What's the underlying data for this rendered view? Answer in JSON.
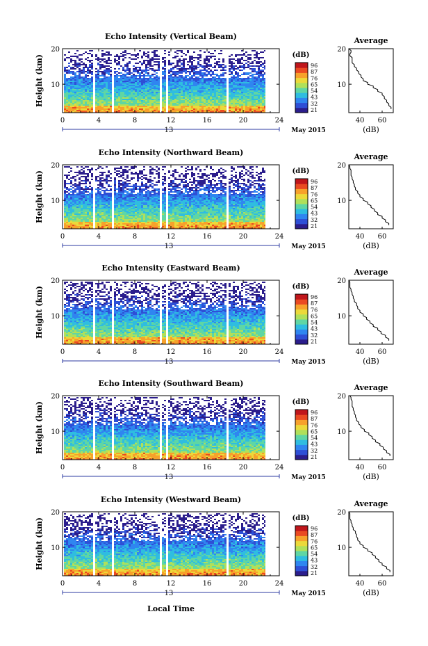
{
  "figure": {
    "shared_xlabel": "Local Time",
    "date_label": "May 2015",
    "day_label": "13",
    "colorbar_title": "(dB)",
    "colorbar_ticks": [
      "96",
      "87",
      "76",
      "65",
      "54",
      "43",
      "32",
      "21"
    ],
    "avg_title": "Average",
    "avg_xlabel": "(dB)",
    "height_label": "Height (km)",
    "colormap": [
      "#2b1d8c",
      "#2e4fd6",
      "#2f86f0",
      "#2fbde0",
      "#5fd6a4",
      "#b0e05a",
      "#ecd93a",
      "#f7a12b",
      "#ea4a22",
      "#c0161b"
    ]
  },
  "chart_data": [
    {
      "type": "heatmap",
      "title": "Echo Intensity (Vertical Beam)",
      "xlabel": "Local Time",
      "ylabel": "Height (km)",
      "xlim": [
        0,
        24
      ],
      "ylim": [
        2,
        20
      ],
      "xticks": [
        0,
        4,
        8,
        12,
        16,
        20,
        24
      ],
      "yticks": [
        10,
        20
      ],
      "gaps_hours": [
        [
          3.3,
          3.6
        ],
        [
          5.3,
          5.5
        ],
        [
          10.7,
          10.8
        ],
        [
          11.3,
          11.5
        ],
        [
          18.0,
          18.2
        ]
      ],
      "colorbar": {
        "label": "(dB)",
        "ticks": [
          96,
          87,
          76,
          65,
          54,
          43,
          32,
          21
        ]
      },
      "average_profile": {
        "title": "Average",
        "xlabel": "(dB)",
        "xticks": [
          40,
          60
        ],
        "xlim": [
          30,
          70
        ],
        "ylim": [
          2,
          20
        ],
        "height_km": [
          3,
          4,
          5,
          6,
          7,
          8,
          9,
          10,
          11,
          12,
          13,
          14,
          15,
          16,
          17,
          18,
          19,
          20
        ],
        "db": [
          68,
          66,
          64,
          62,
          60,
          56,
          52,
          47,
          43,
          41,
          39,
          37,
          35,
          33,
          33,
          31,
          32,
          30
        ]
      }
    },
    {
      "type": "heatmap",
      "title": "Echo Intensity (Northward Beam)",
      "xlabel": "Local Time",
      "ylabel": "Height (km)",
      "xlim": [
        0,
        24
      ],
      "ylim": [
        2,
        20
      ],
      "xticks": [
        0,
        4,
        8,
        12,
        16,
        20,
        24
      ],
      "yticks": [
        10,
        20
      ],
      "gaps_hours": [
        [
          3.3,
          3.6
        ],
        [
          5.3,
          5.5
        ],
        [
          10.7,
          10.8
        ],
        [
          11.3,
          11.5
        ],
        [
          18.0,
          18.2
        ]
      ],
      "colorbar": {
        "label": "(dB)",
        "ticks": [
          96,
          87,
          76,
          65,
          54,
          43,
          32,
          21
        ]
      },
      "average_profile": {
        "title": "Average",
        "xlabel": "(dB)",
        "xticks": [
          40,
          60
        ],
        "xlim": [
          30,
          70
        ],
        "ylim": [
          2,
          20
        ],
        "height_km": [
          3,
          4,
          5,
          6,
          7,
          8,
          9,
          10,
          11,
          12,
          13,
          14,
          15,
          16,
          17,
          18,
          19,
          20
        ],
        "db": [
          66,
          63,
          60,
          56,
          53,
          50,
          47,
          43,
          40,
          38,
          36,
          35,
          34,
          33,
          32,
          32,
          31,
          30
        ]
      }
    },
    {
      "type": "heatmap",
      "title": "Echo Intensity (Eastward Beam)",
      "xlabel": "Local Time",
      "ylabel": "Height (km)",
      "xlim": [
        0,
        24
      ],
      "ylim": [
        2,
        20
      ],
      "xticks": [
        0,
        4,
        8,
        12,
        16,
        20,
        24
      ],
      "yticks": [
        10,
        20
      ],
      "gaps_hours": [
        [
          3.3,
          3.6
        ],
        [
          5.3,
          5.5
        ],
        [
          10.7,
          10.8
        ],
        [
          11.3,
          11.5
        ],
        [
          18.0,
          18.2
        ]
      ],
      "colorbar": {
        "label": "(dB)",
        "ticks": [
          96,
          87,
          76,
          65,
          54,
          43,
          32,
          21
        ]
      },
      "average_profile": {
        "title": "Average",
        "xlabel": "(dB)",
        "xticks": [
          40,
          60
        ],
        "xlim": [
          30,
          70
        ],
        "ylim": [
          2,
          20
        ],
        "height_km": [
          3,
          4,
          5,
          6,
          7,
          8,
          9,
          10,
          11,
          12,
          13,
          14,
          15,
          16,
          17,
          18,
          19,
          20
        ],
        "db": [
          66,
          63,
          59,
          56,
          52,
          49,
          46,
          43,
          40,
          38,
          37,
          35,
          34,
          33,
          32,
          31,
          31,
          30
        ]
      }
    },
    {
      "type": "heatmap",
      "title": "Echo Intensity (Southward Beam)",
      "xlabel": "Local Time",
      "ylabel": "Height (km)",
      "xlim": [
        0,
        24
      ],
      "ylim": [
        2,
        20
      ],
      "xticks": [
        0,
        4,
        8,
        12,
        16,
        20,
        24
      ],
      "yticks": [
        10,
        20
      ],
      "gaps_hours": [
        [
          3.3,
          3.6
        ],
        [
          5.3,
          5.5
        ],
        [
          10.7,
          10.8
        ],
        [
          11.3,
          11.5
        ],
        [
          18.0,
          18.2
        ]
      ],
      "colorbar": {
        "label": "(dB)",
        "ticks": [
          96,
          87,
          76,
          65,
          54,
          43,
          32,
          21
        ]
      },
      "average_profile": {
        "title": "Average",
        "xlabel": "(dB)",
        "xticks": [
          40,
          60
        ],
        "xlim": [
          30,
          70
        ],
        "ylim": [
          2,
          20
        ],
        "height_km": [
          3,
          4,
          5,
          6,
          7,
          8,
          9,
          10,
          11,
          12,
          13,
          14,
          15,
          16,
          17,
          18,
          19,
          20
        ],
        "db": [
          67,
          64,
          61,
          58,
          54,
          51,
          48,
          44,
          41,
          39,
          37,
          36,
          35,
          34,
          33,
          33,
          32,
          31
        ]
      }
    },
    {
      "type": "heatmap",
      "title": "Echo Intensity (Westward Beam)",
      "xlabel": "Local Time",
      "ylabel": "Height (km)",
      "xlim": [
        0,
        24
      ],
      "ylim": [
        2,
        20
      ],
      "xticks": [
        0,
        4,
        8,
        12,
        16,
        20,
        24
      ],
      "yticks": [
        10,
        20
      ],
      "gaps_hours": [
        [
          3.3,
          3.6
        ],
        [
          5.3,
          5.5
        ],
        [
          10.7,
          10.8
        ],
        [
          11.3,
          11.5
        ],
        [
          18.0,
          18.2
        ]
      ],
      "colorbar": {
        "label": "(dB)",
        "ticks": [
          96,
          87,
          76,
          65,
          54,
          43,
          32,
          21
        ]
      },
      "average_profile": {
        "title": "Average",
        "xlabel": "(dB)",
        "xticks": [
          40,
          60
        ],
        "xlim": [
          30,
          70
        ],
        "ylim": [
          2,
          20
        ],
        "height_km": [
          3,
          4,
          5,
          6,
          7,
          8,
          9,
          10,
          11,
          12,
          13,
          14,
          15,
          16,
          17,
          18,
          19,
          20
        ],
        "db": [
          67,
          64,
          60,
          57,
          54,
          51,
          47,
          43,
          40,
          38,
          37,
          36,
          34,
          33,
          32,
          31,
          31,
          30
        ]
      }
    }
  ]
}
